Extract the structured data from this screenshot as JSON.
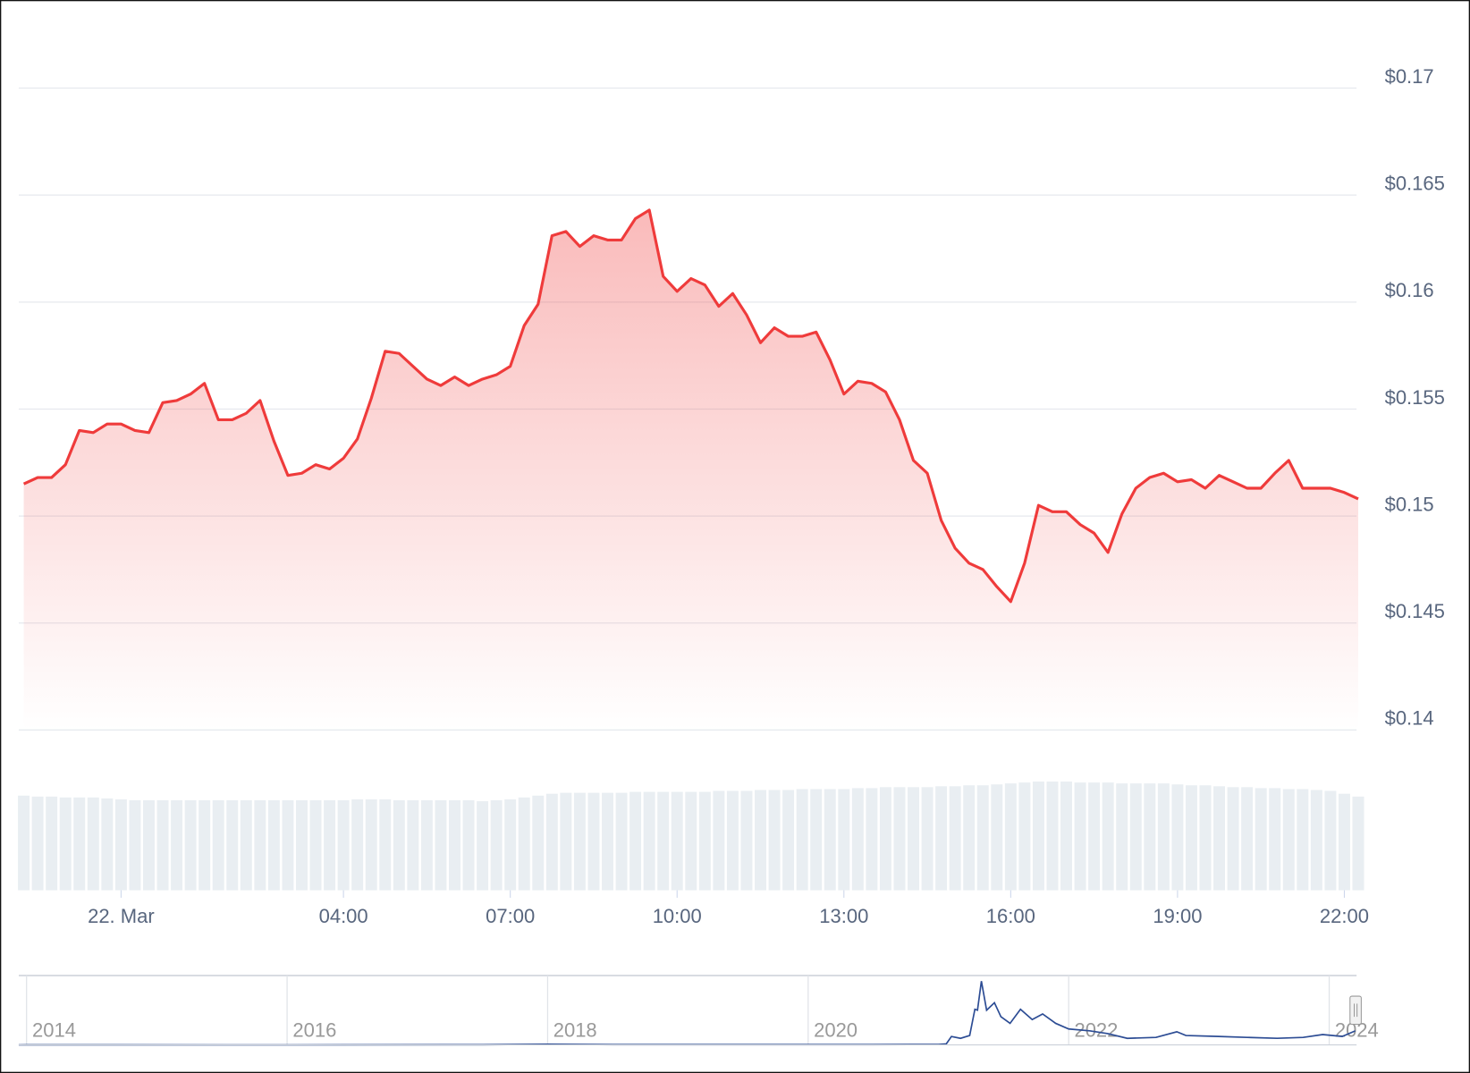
{
  "chart_data": [
    {
      "type": "area",
      "x": [
        -1.75,
        -1.5,
        -1.25,
        -1.0,
        -0.75,
        -0.5,
        -0.25,
        0,
        0.25,
        0.5,
        0.75,
        1.0,
        1.25,
        1.5,
        1.75,
        2.0,
        2.25,
        2.5,
        2.75,
        3.0,
        3.25,
        3.5,
        3.75,
        4.0,
        4.25,
        4.5,
        4.75,
        5.0,
        5.25,
        5.5,
        5.75,
        6.0,
        6.25,
        6.5,
        6.75,
        7.0,
        7.25,
        7.5,
        7.75,
        8.0,
        8.25,
        8.5,
        8.75,
        9.0,
        9.25,
        9.5,
        9.75,
        10.0,
        10.25,
        10.5,
        10.75,
        11.0,
        11.25,
        11.5,
        11.75,
        12.0,
        12.25,
        12.5,
        12.75,
        13.0,
        13.25,
        13.5,
        13.75,
        14.0,
        14.25,
        14.5,
        14.75,
        15.0,
        15.25,
        15.5,
        15.75,
        16.0,
        16.25,
        16.5,
        16.75,
        17.0,
        17.25,
        17.5,
        17.75,
        18.0,
        18.25,
        18.5,
        18.75,
        19.0,
        19.25,
        19.5,
        19.75,
        20.0,
        20.25,
        20.5,
        20.75,
        21.0,
        21.25,
        21.5,
        21.75,
        22.0,
        22.25
      ],
      "series": [
        {
          "color": "#ef3b3b",
          "values": [
            0.1515,
            0.1518,
            0.1518,
            0.1524,
            0.154,
            0.1539,
            0.1543,
            0.1543,
            0.154,
            0.1539,
            0.1553,
            0.1554,
            0.1557,
            0.1562,
            0.1545,
            0.1545,
            0.1548,
            0.1554,
            0.1535,
            0.1519,
            0.152,
            0.1524,
            0.1522,
            0.1527,
            0.1536,
            0.1555,
            0.1577,
            0.1576,
            0.157,
            0.1564,
            0.1561,
            0.1565,
            0.1561,
            0.1564,
            0.1566,
            0.157,
            0.1589,
            0.1599,
            0.1631,
            0.1633,
            0.1626,
            0.1631,
            0.1629,
            0.1629,
            0.1639,
            0.1643,
            0.1612,
            0.1605,
            0.1611,
            0.1608,
            0.1598,
            0.1604,
            0.1594,
            0.1581,
            0.1588,
            0.1584,
            0.1584,
            0.1586,
            0.1573,
            0.1557,
            0.1563,
            0.1562,
            0.1558,
            0.1545,
            0.1526,
            0.152,
            0.1498,
            0.1485,
            0.1478,
            0.1475,
            0.1467,
            0.146,
            0.1478,
            0.1505,
            0.1502,
            0.1502,
            0.1496,
            0.1492,
            0.1483,
            0.1501,
            0.1513,
            0.1518,
            0.152,
            0.1516,
            0.1517,
            0.1513,
            0.1519,
            0.1516,
            0.1513,
            0.1513,
            0.152,
            0.1526,
            0.1513,
            0.1513,
            0.1513,
            0.1511,
            0.1508
          ]
        }
      ],
      "volume": {
        "color": "#e9eef2",
        "ylim": [
          0,
          120
        ],
        "values": [
          101,
          100,
          100,
          99,
          99,
          99,
          98,
          97,
          96,
          96,
          96,
          96,
          96,
          96,
          96,
          96,
          96,
          96,
          96,
          96,
          96,
          96,
          96,
          96,
          97,
          97,
          97,
          96,
          96,
          96,
          96,
          96,
          96,
          95,
          96,
          97,
          99,
          101,
          103,
          104,
          104,
          104,
          104,
          104,
          105,
          105,
          105,
          105,
          105,
          105,
          106,
          106,
          106,
          107,
          107,
          107,
          108,
          108,
          108,
          108,
          109,
          109,
          110,
          110,
          110,
          110,
          111,
          111,
          112,
          112,
          113,
          114,
          115,
          116,
          116,
          116,
          115,
          115,
          115,
          114,
          114,
          114,
          114,
          113,
          112,
          112,
          111,
          110,
          110,
          109,
          109,
          108,
          108,
          107,
          106,
          103,
          100
        ]
      },
      "xlim": [
        -1.84,
        22.22
      ],
      "xticks": [
        {
          "value": 0,
          "label": "22. Mar"
        },
        {
          "value": 4,
          "label": "04:00"
        },
        {
          "value": 7,
          "label": "07:00"
        },
        {
          "value": 10,
          "label": "10:00"
        },
        {
          "value": 13,
          "label": "13:00"
        },
        {
          "value": 16,
          "label": "16:00"
        },
        {
          "value": 19,
          "label": "19:00"
        },
        {
          "value": 22,
          "label": "22:00"
        }
      ],
      "ylim": [
        0.14,
        0.17
      ],
      "yticks": [
        {
          "value": 0.14,
          "label": "$0.14"
        },
        {
          "value": 0.145,
          "label": "$0.145"
        },
        {
          "value": 0.15,
          "label": "$0.15"
        },
        {
          "value": 0.155,
          "label": "$0.155"
        },
        {
          "value": 0.16,
          "label": "$0.16"
        },
        {
          "value": 0.165,
          "label": "$0.165"
        },
        {
          "value": 0.17,
          "label": "$0.17"
        }
      ],
      "grid": true
    },
    {
      "type": "line",
      "x": [
        2013.94,
        2014,
        2016,
        2017.5,
        2018,
        2018.5,
        2019.5,
        2020.5,
        2021.0,
        2021.06,
        2021.1,
        2021.17,
        2021.24,
        2021.28,
        2021.3,
        2021.33,
        2021.37,
        2021.43,
        2021.48,
        2021.55,
        2021.63,
        2021.72,
        2021.8,
        2021.9,
        2022.0,
        2022.16,
        2022.3,
        2022.45,
        2022.67,
        2022.83,
        2022.9,
        2023.15,
        2023.37,
        2023.6,
        2023.8,
        2023.95,
        2024.1,
        2024.2
      ],
      "series": [
        {
          "color": "#2c4c94",
          "values": [
            0.0002,
            0.0005,
            0.0002,
            0.002,
            0.007,
            0.003,
            0.003,
            0.003,
            0.005,
            0.01,
            0.09,
            0.07,
            0.1,
            0.38,
            0.37,
            0.68,
            0.37,
            0.45,
            0.3,
            0.23,
            0.38,
            0.27,
            0.33,
            0.23,
            0.17,
            0.15,
            0.12,
            0.07,
            0.08,
            0.14,
            0.1,
            0.09,
            0.08,
            0.07,
            0.08,
            0.11,
            0.09,
            0.15
          ]
        }
      ],
      "xlim": [
        2013.94,
        2024.21
      ],
      "xticks": [
        2014,
        2016,
        2018,
        2020,
        2022,
        2024
      ],
      "ylim": [
        0,
        0.73
      ],
      "grid": true
    }
  ]
}
